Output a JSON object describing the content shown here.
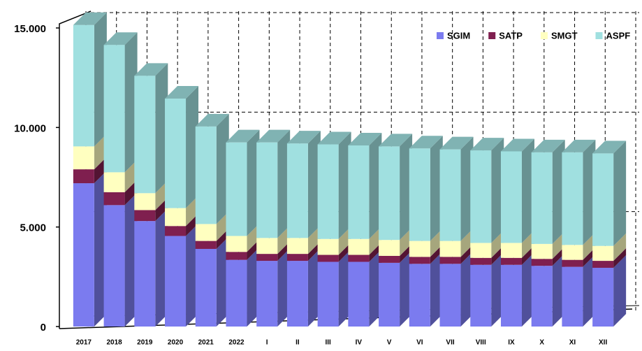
{
  "chart_data": {
    "type": "bar3d_stacked",
    "categories": [
      "2017",
      "2018",
      "2019",
      "2020",
      "2021",
      "2022",
      "I",
      "II",
      "III",
      "IV",
      "V",
      "VI",
      "VII",
      "VIII",
      "IX",
      "X",
      "XI",
      "XII"
    ],
    "series": [
      {
        "name": "SGIM",
        "color": "#7b7bef",
        "values": [
          7200,
          6100,
          5300,
          4550,
          3900,
          3350,
          3300,
          3300,
          3250,
          3250,
          3200,
          3150,
          3150,
          3100,
          3100,
          3050,
          3000,
          2950
        ]
      },
      {
        "name": "SATP",
        "color": "#7f1f4f",
        "values": [
          700,
          650,
          550,
          500,
          400,
          400,
          350,
          350,
          350,
          350,
          350,
          350,
          350,
          350,
          350,
          350,
          350,
          350
        ]
      },
      {
        "name": "SMGT",
        "color": "#ffffc0",
        "values": [
          1150,
          1000,
          850,
          900,
          850,
          800,
          800,
          800,
          800,
          800,
          800,
          800,
          800,
          750,
          750,
          750,
          750,
          750
        ]
      },
      {
        "name": "ASPF",
        "color": "#a0e0e0",
        "values": [
          6100,
          6400,
          5900,
          5500,
          4900,
          4700,
          4800,
          4750,
          4750,
          4700,
          4700,
          4650,
          4600,
          4650,
          4600,
          4600,
          4650,
          4650
        ]
      }
    ],
    "ylim": [
      0,
      15000
    ],
    "yticks": [
      {
        "value": 0,
        "label": "0"
      },
      {
        "value": 5000,
        "label": "5.000"
      },
      {
        "value": 10000,
        "label": "10.000"
      },
      {
        "value": 15000,
        "label": "15.000"
      }
    ],
    "grid": true,
    "legend": "top-right"
  }
}
